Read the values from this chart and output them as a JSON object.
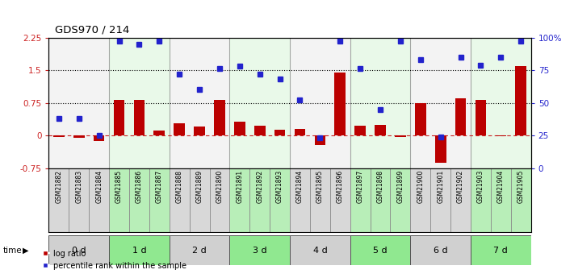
{
  "title": "GDS970 / 214",
  "samples": [
    "GSM21882",
    "GSM21883",
    "GSM21884",
    "GSM21885",
    "GSM21886",
    "GSM21887",
    "GSM21888",
    "GSM21889",
    "GSM21890",
    "GSM21891",
    "GSM21892",
    "GSM21893",
    "GSM21894",
    "GSM21895",
    "GSM21896",
    "GSM21897",
    "GSM21898",
    "GSM21899",
    "GSM21900",
    "GSM21901",
    "GSM21902",
    "GSM21903",
    "GSM21904",
    "GSM21905"
  ],
  "log_ratio": [
    -0.04,
    -0.05,
    -0.12,
    0.82,
    0.82,
    0.12,
    0.28,
    0.2,
    0.82,
    0.32,
    0.22,
    0.13,
    0.16,
    -0.22,
    1.45,
    0.22,
    0.25,
    -0.04,
    0.75,
    -0.62,
    0.85,
    0.82,
    -0.02,
    1.6
  ],
  "percentile_pct": [
    38,
    38,
    25,
    97,
    95,
    97,
    72,
    60,
    76,
    78,
    72,
    68,
    52,
    23,
    97,
    76,
    45,
    97,
    83,
    24,
    85,
    79,
    85,
    97
  ],
  "groups": {
    "0 d": [
      0,
      1,
      2
    ],
    "1 d": [
      3,
      4,
      5
    ],
    "2 d": [
      6,
      7,
      8
    ],
    "3 d": [
      9,
      10,
      11
    ],
    "4 d": [
      12,
      13,
      14
    ],
    "5 d": [
      15,
      16,
      17
    ],
    "6 d": [
      18,
      19,
      20
    ],
    "7 d": [
      21,
      22,
      23
    ]
  },
  "group_colors_light": [
    "#d8d8d8",
    "#b8eeb8",
    "#d8d8d8",
    "#b8eeb8",
    "#d8d8d8",
    "#b8eeb8",
    "#d8d8d8",
    "#b8eeb8"
  ],
  "group_colors_bright": [
    "#d0d0d0",
    "#90e890",
    "#d0d0d0",
    "#90e890",
    "#d0d0d0",
    "#90e890",
    "#d0d0d0",
    "#90e890"
  ],
  "group_names": [
    "0 d",
    "1 d",
    "2 d",
    "3 d",
    "4 d",
    "5 d",
    "6 d",
    "7 d"
  ],
  "bar_color": "#bb0000",
  "dot_color": "#2222cc",
  "left_ylim": [
    -0.75,
    2.25
  ],
  "right_ylim": [
    0,
    100
  ],
  "left_yticks": [
    -0.75,
    0,
    0.75,
    1.5,
    2.25
  ],
  "right_yticks": [
    0,
    25,
    50,
    75,
    100
  ],
  "hline_values": [
    0.75,
    1.5
  ],
  "zero_line_color": "#cc2222",
  "bg_color": "#ffffff",
  "legend_bar": "log ratio",
  "legend_dot": "percentile rank within the sample"
}
